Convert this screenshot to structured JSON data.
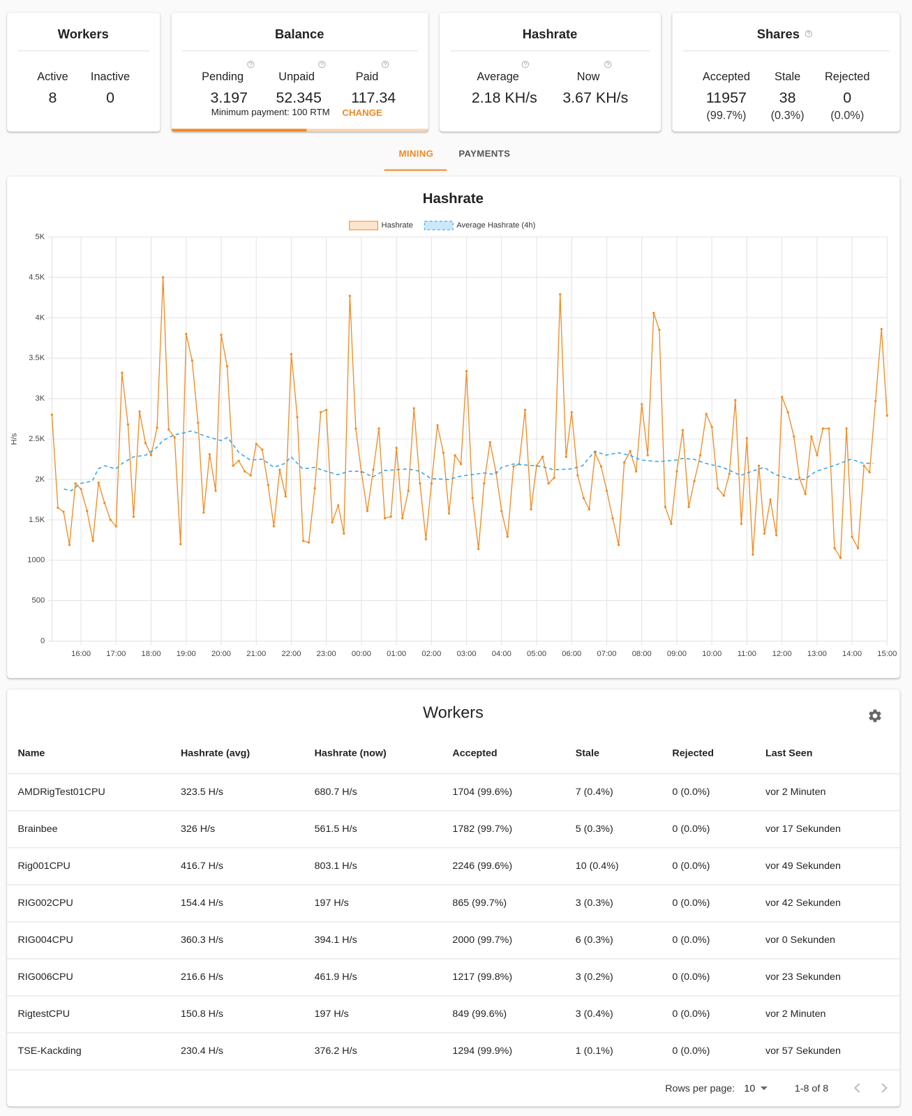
{
  "summary": {
    "workers": {
      "title": "Workers",
      "labels": [
        "Active",
        "Inactive"
      ],
      "values": [
        8,
        0
      ]
    },
    "balance": {
      "title": "Balance",
      "labels": [
        "Pending",
        "Unpaid",
        "Paid"
      ],
      "values": [
        3.197,
        52.345,
        117.34
      ],
      "minimum": "Minimum payment: 100 RTM",
      "action": "CHANGE"
    },
    "hashrate": {
      "title": "Hashrate",
      "labels": [
        "Average",
        "Now"
      ],
      "values": [
        "2.18 KH/s",
        "3.67 KH/s"
      ]
    },
    "shares": {
      "title": "Shares",
      "labels": [
        "Accepted",
        "Stale",
        "Rejected"
      ],
      "values": [
        11957,
        38,
        0
      ],
      "percents": [
        "(99.7%)",
        "(0.3%)",
        "(0.0%)"
      ]
    }
  },
  "tabs": [
    "MINING",
    "PAYMENTS"
  ],
  "chart_data": {
    "type": "line",
    "title": "Hashrate",
    "ylabel": "H/s",
    "grid": true,
    "xlim": [
      15.17,
      39
    ],
    "xticks": [
      {
        "value": 16,
        "label": "16:00"
      },
      {
        "value": 17,
        "label": "17:00"
      },
      {
        "value": 18,
        "label": "18:00"
      },
      {
        "value": 19,
        "label": "19:00"
      },
      {
        "value": 20,
        "label": "20:00"
      },
      {
        "value": 21,
        "label": "21:00"
      },
      {
        "value": 22,
        "label": "22:00"
      },
      {
        "value": 23,
        "label": "23:00"
      },
      {
        "value": 24,
        "label": "00:00"
      },
      {
        "value": 25,
        "label": "01:00"
      },
      {
        "value": 26,
        "label": "02:00"
      },
      {
        "value": 27,
        "label": "03:00"
      },
      {
        "value": 28,
        "label": "04:00"
      },
      {
        "value": 29,
        "label": "05:00"
      },
      {
        "value": 30,
        "label": "06:00"
      },
      {
        "value": 31,
        "label": "07:00"
      },
      {
        "value": 32,
        "label": "08:00"
      },
      {
        "value": 33,
        "label": "09:00"
      },
      {
        "value": 34,
        "label": "10:00"
      },
      {
        "value": 35,
        "label": "11:00"
      },
      {
        "value": 36,
        "label": "12:00"
      },
      {
        "value": 37,
        "label": "13:00"
      },
      {
        "value": 38,
        "label": "14:00"
      },
      {
        "value": 39,
        "label": "15:00"
      }
    ],
    "ylim": [
      0,
      5000
    ],
    "yticks": [
      0,
      500,
      1000,
      {
        "value": 1500,
        "label": "1.5K"
      },
      {
        "value": 2000,
        "label": "2K"
      },
      {
        "value": 2500,
        "label": "2.5K"
      },
      {
        "value": 3000,
        "label": "3K"
      },
      {
        "value": 3500,
        "label": "3.5K"
      },
      {
        "value": 4000,
        "label": "4K"
      },
      {
        "value": 4500,
        "label": "4.5K"
      },
      {
        "value": 5000,
        "label": "5K"
      }
    ],
    "x": [
      15.17,
      15.34,
      15.5,
      15.67,
      15.84,
      16,
      16.17,
      16.34,
      16.5,
      16.67,
      16.84,
      17,
      17.17,
      17.34,
      17.5,
      17.67,
      17.84,
      18,
      18.17,
      18.34,
      18.5,
      18.67,
      18.84,
      19,
      19.17,
      19.34,
      19.5,
      19.67,
      19.84,
      20,
      20.17,
      20.34,
      20.5,
      20.67,
      20.84,
      21,
      21.17,
      21.34,
      21.5,
      21.67,
      21.84,
      22,
      22.17,
      22.34,
      22.5,
      22.67,
      22.84,
      23,
      23.17,
      23.34,
      23.5,
      23.67,
      23.84,
      24,
      24.17,
      24.34,
      24.5,
      24.67,
      24.84,
      25,
      25.17,
      25.34,
      25.5,
      25.67,
      25.84,
      26,
      26.17,
      26.34,
      26.5,
      26.67,
      26.84,
      27,
      27.17,
      27.34,
      27.5,
      27.67,
      27.84,
      28,
      28.17,
      28.34,
      28.5,
      28.67,
      28.84,
      29,
      29.17,
      29.34,
      29.5,
      29.67,
      29.84,
      30,
      30.17,
      30.34,
      30.5,
      30.67,
      30.84,
      31,
      31.17,
      31.34,
      31.5,
      31.67,
      31.84,
      32,
      32.17,
      32.34,
      32.5,
      32.67,
      32.84,
      33,
      33.17,
      33.34,
      33.5,
      33.67,
      33.84,
      34,
      34.17,
      34.34,
      34.5,
      34.67,
      34.84,
      35,
      35.17,
      35.34,
      35.5,
      35.67,
      35.84,
      36,
      36.17,
      36.34,
      36.5,
      36.67,
      36.84,
      37,
      37.17,
      37.34,
      37.5,
      37.67,
      37.84,
      38,
      38.17,
      38.34,
      38.5,
      38.67,
      38.84,
      39
    ],
    "series": [
      {
        "name": "Hashrate",
        "color": "#f08a24",
        "values": [
          2800,
          1650,
          1600,
          1190,
          1950,
          1880,
          1610,
          1240,
          1960,
          1710,
          1500,
          1420,
          3320,
          2680,
          1540,
          2840,
          2450,
          2300,
          2640,
          4500,
          2620,
          2520,
          1200,
          3800,
          3470,
          2700,
          1590,
          2310,
          1860,
          3790,
          3400,
          2170,
          2230,
          2100,
          2050,
          2440,
          2370,
          1930,
          1420,
          2120,
          1790,
          3550,
          2770,
          1240,
          1220,
          1890,
          2830,
          2860,
          1470,
          1680,
          1330,
          4270,
          2630,
          2090,
          1610,
          2120,
          2630,
          1520,
          1540,
          2390,
          1520,
          1860,
          2880,
          1950,
          1260,
          1950,
          2670,
          2330,
          1580,
          2300,
          2190,
          3340,
          1770,
          1140,
          1950,
          2460,
          2090,
          1610,
          1290,
          2160,
          2190,
          2860,
          1630,
          2170,
          2280,
          1950,
          2020,
          4290,
          2280,
          2830,
          2050,
          1770,
          1630,
          2330,
          2160,
          1860,
          1520,
          1190,
          2210,
          2350,
          2100,
          2930,
          2300,
          4060,
          3850,
          1660,
          1450,
          2100,
          2610,
          1660,
          1980,
          2300,
          2810,
          2650,
          1890,
          1800,
          2070,
          2980,
          1450,
          2510,
          1070,
          2170,
          1330,
          1750,
          1310,
          3020,
          2830,
          2530,
          2020,
          1820,
          2530,
          2300,
          2630,
          2630,
          1150,
          1030,
          2630,
          1290,
          1150,
          2170,
          2090,
          2970,
          3860,
          2790
        ]
      },
      {
        "name": "Average Hashrate (4h)",
        "color": "#36a2eb",
        "dash": true,
        "x": [
          15.51,
          15.72,
          15.98,
          16.32,
          16.49,
          16.67,
          16.99,
          17.18,
          17.5,
          17.85,
          18.17,
          18.33,
          18.66,
          19.17,
          19.51,
          20,
          20.18,
          20.51,
          20.83,
          21.18,
          21.5,
          21.83,
          21.99,
          22.33,
          22.66,
          23,
          23.33,
          23.65,
          24,
          24.32,
          24.65,
          25.32,
          25.67,
          25.99,
          26.5,
          26.82,
          27.17,
          27.49,
          27.82,
          28,
          28.33,
          28.65,
          29.15,
          29.48,
          29.99,
          30.31,
          30.66,
          30.98,
          31.33,
          31.65,
          31.98,
          32.48,
          32.99,
          33.15,
          33.48,
          33.82,
          34.31,
          34.82,
          35.14,
          35.49,
          35.81,
          36.3,
          36.65,
          36.97,
          37.48,
          37.97,
          38.32,
          38.61
        ],
        "values": [
          1880,
          1860,
          1950,
          1980,
          2130,
          2170,
          2130,
          2200,
          2280,
          2300,
          2400,
          2480,
          2550,
          2600,
          2540,
          2480,
          2520,
          2330,
          2240,
          2250,
          2150,
          2200,
          2280,
          2130,
          2150,
          2100,
          2060,
          2100,
          2100,
          2030,
          2110,
          2130,
          2100,
          2010,
          2000,
          2040,
          2060,
          2080,
          2060,
          2150,
          2190,
          2180,
          2160,
          2120,
          2130,
          2170,
          2350,
          2300,
          2330,
          2300,
          2240,
          2220,
          2240,
          2260,
          2250,
          2200,
          2150,
          2050,
          2100,
          2150,
          2060,
          2000,
          2000,
          2100,
          2170,
          2250,
          2200,
          2200
        ]
      }
    ]
  },
  "workers_table": {
    "title": "Workers",
    "columns": [
      "Name",
      "Hashrate (avg)",
      "Hashrate (now)",
      "Accepted",
      "Stale",
      "Rejected",
      "Last Seen"
    ],
    "rows": [
      [
        "AMDRigTest01CPU",
        "323.5 H/s",
        "680.7 H/s",
        "1704 (99.6%)",
        "7 (0.4%)",
        "0 (0.0%)",
        "vor 2 Minuten"
      ],
      [
        "Brainbee",
        "326 H/s",
        "561.5 H/s",
        "1782 (99.7%)",
        "5 (0.3%)",
        "0 (0.0%)",
        "vor 17 Sekunden"
      ],
      [
        "Rig001CPU",
        "416.7 H/s",
        "803.1 H/s",
        "2246 (99.6%)",
        "10 (0.4%)",
        "0 (0.0%)",
        "vor 49 Sekunden"
      ],
      [
        "RIG002CPU",
        "154.4 H/s",
        "197 H/s",
        "865 (99.7%)",
        "3 (0.3%)",
        "0 (0.0%)",
        "vor 42 Sekunden"
      ],
      [
        "RIG004CPU",
        "360.3 H/s",
        "394.1 H/s",
        "2000 (99.7%)",
        "6 (0.3%)",
        "0 (0.0%)",
        "vor 0 Sekunden"
      ],
      [
        "RIG006CPU",
        "216.6 H/s",
        "461.9 H/s",
        "1217 (99.8%)",
        "3 (0.2%)",
        "0 (0.0%)",
        "vor 23 Sekunden"
      ],
      [
        "RigtestCPU",
        "150.8 H/s",
        "197 H/s",
        "849 (99.6%)",
        "3 (0.4%)",
        "0 (0.0%)",
        "vor 2 Minuten"
      ],
      [
        "TSE-Kackding",
        "230.4 H/s",
        "376.2 H/s",
        "1294 (99.9%)",
        "1 (0.1%)",
        "0 (0.0%)",
        "vor 57 Sekunden"
      ]
    ],
    "rows_per_page_label": "Rows per page:",
    "rows_per_page": 10,
    "range": "1-8 of 8"
  }
}
